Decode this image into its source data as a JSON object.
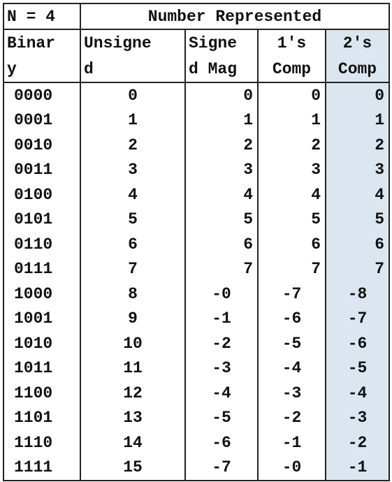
{
  "header": {
    "corner": "N = 4",
    "span_title": "Number Represented",
    "columns": [
      {
        "line1": "Binar",
        "line2": "y"
      },
      {
        "line1": "Unsigne",
        "line2": "d"
      },
      {
        "line1": "Signe",
        "line2": "d Mag"
      },
      {
        "line1": "1's",
        "line2": "Comp"
      },
      {
        "line1": "2's",
        "line2": "Comp"
      }
    ]
  },
  "rows": [
    {
      "binary": "0000",
      "unsigned": "0",
      "signed_mag": "0",
      "ones_comp": "0",
      "twos_comp": "0"
    },
    {
      "binary": "0001",
      "unsigned": "1",
      "signed_mag": "1",
      "ones_comp": "1",
      "twos_comp": "1"
    },
    {
      "binary": "0010",
      "unsigned": "2",
      "signed_mag": "2",
      "ones_comp": "2",
      "twos_comp": "2"
    },
    {
      "binary": "0011",
      "unsigned": "3",
      "signed_mag": "3",
      "ones_comp": "3",
      "twos_comp": "3"
    },
    {
      "binary": "0100",
      "unsigned": "4",
      "signed_mag": "4",
      "ones_comp": "4",
      "twos_comp": "4"
    },
    {
      "binary": "0101",
      "unsigned": "5",
      "signed_mag": "5",
      "ones_comp": "5",
      "twos_comp": "5"
    },
    {
      "binary": "0110",
      "unsigned": "6",
      "signed_mag": "6",
      "ones_comp": "6",
      "twos_comp": "6"
    },
    {
      "binary": "0111",
      "unsigned": "7",
      "signed_mag": "7",
      "ones_comp": "7",
      "twos_comp": "7"
    },
    {
      "binary": "1000",
      "unsigned": "8",
      "signed_mag": "-0",
      "ones_comp": "-7",
      "twos_comp": "-8"
    },
    {
      "binary": "1001",
      "unsigned": "9",
      "signed_mag": "-1",
      "ones_comp": "-6",
      "twos_comp": "-7"
    },
    {
      "binary": "1010",
      "unsigned": "10",
      "signed_mag": "-2",
      "ones_comp": "-5",
      "twos_comp": "-6"
    },
    {
      "binary": "1011",
      "unsigned": "11",
      "signed_mag": "-3",
      "ones_comp": "-4",
      "twos_comp": "-5"
    },
    {
      "binary": "1100",
      "unsigned": "12",
      "signed_mag": "-4",
      "ones_comp": "-3",
      "twos_comp": "-4"
    },
    {
      "binary": "1101",
      "unsigned": "13",
      "signed_mag": "-5",
      "ones_comp": "-2",
      "twos_comp": "-3"
    },
    {
      "binary": "1110",
      "unsigned": "14",
      "signed_mag": "-6",
      "ones_comp": "-1",
      "twos_comp": "-2"
    },
    {
      "binary": "1111",
      "unsigned": "15",
      "signed_mag": "-7",
      "ones_comp": "-0",
      "twos_comp": "-1"
    }
  ],
  "colors": {
    "highlight_column": "#dce6f1",
    "border": "#222222"
  }
}
